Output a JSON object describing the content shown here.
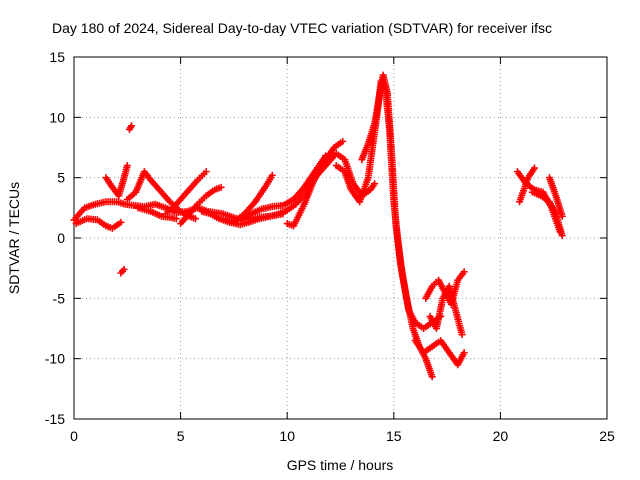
{
  "chart_data": {
    "type": "scatter",
    "title": "Day 180 of 2024, Sidereal Day-to-day VTEC variation (SDTVAR) for receiver ifsc",
    "xlabel": "GPS time / hours",
    "ylabel": "SDTVAR / TECUs",
    "xlim": [
      0,
      25
    ],
    "ylim": [
      -15,
      15
    ],
    "xticks": [
      "0",
      "5",
      "10",
      "15",
      "20",
      "25"
    ],
    "yticks": [
      "-15",
      "-10",
      "-5",
      "0",
      "5",
      "10",
      "15"
    ],
    "grid": true,
    "marker": "plus",
    "color": "#ff0000",
    "series": [
      {
        "name": "arc-1",
        "x": [
          0.0,
          0.5,
          1.0,
          1.5,
          2.0,
          2.4,
          2.8,
          3.3,
          3.8,
          4.3,
          4.8,
          5.3,
          5.8,
          6.3,
          7.0,
          7.8,
          8.5,
          9.2,
          9.8
        ],
        "y": [
          1.5,
          2.5,
          2.8,
          3.0,
          3.0,
          2.8,
          2.7,
          2.6,
          2.8,
          2.5,
          2.1,
          2.2,
          2.5,
          2.2,
          2.0,
          1.5,
          1.7,
          1.8,
          2.0
        ]
      },
      {
        "name": "arc-2",
        "x": [
          0.1,
          0.6,
          1.1,
          1.5,
          1.8,
          2.2
        ],
        "y": [
          1.2,
          1.6,
          1.5,
          1.0,
          0.8,
          1.3
        ]
      },
      {
        "name": "arc-3",
        "x": [
          1.5,
          1.8,
          2.1,
          2.35,
          2.5
        ],
        "y": [
          5.0,
          4.2,
          3.5,
          5.0,
          6.0
        ]
      },
      {
        "name": "arc-4",
        "x": [
          2.6,
          2.7
        ],
        "y": [
          9.0,
          9.3
        ]
      },
      {
        "name": "arc-5",
        "x": [
          2.2,
          2.35
        ],
        "y": [
          -2.9,
          -2.6
        ]
      },
      {
        "name": "arc-6",
        "x": [
          2.5,
          2.9,
          3.3,
          3.6,
          4.0,
          4.5,
          5.0,
          5.4,
          5.7
        ],
        "y": [
          3.2,
          3.8,
          5.5,
          4.8,
          4.0,
          3.0,
          2.2,
          1.8,
          1.6
        ]
      },
      {
        "name": "arc-7",
        "x": [
          4.3,
          4.8,
          5.3,
          5.8,
          6.2
        ],
        "y": [
          2.0,
          2.8,
          3.8,
          4.8,
          5.5
        ]
      },
      {
        "name": "arc-8",
        "x": [
          3.0,
          3.6,
          4.1,
          4.5,
          4.8
        ],
        "y": [
          2.5,
          2.2,
          1.8,
          1.7,
          1.6
        ]
      },
      {
        "name": "arc-9",
        "x": [
          5.0,
          5.4,
          5.8,
          6.2,
          6.6,
          6.9
        ],
        "y": [
          1.2,
          2.0,
          2.8,
          3.5,
          4.0,
          4.2
        ]
      },
      {
        "name": "arc-10",
        "x": [
          6.0,
          6.4,
          6.8,
          7.3,
          7.8,
          8.2,
          8.7,
          9.2,
          9.6,
          10.0,
          10.4,
          11.0,
          11.5
        ],
        "y": [
          2.2,
          2.0,
          1.6,
          1.3,
          1.1,
          1.3,
          1.6,
          1.8,
          2.0,
          2.3,
          2.8,
          4.0,
          5.5
        ]
      },
      {
        "name": "arc-11",
        "x": [
          7.0,
          7.5,
          8.0,
          8.5,
          9.0,
          9.3
        ],
        "y": [
          1.6,
          1.3,
          2.0,
          3.0,
          4.3,
          5.2
        ]
      },
      {
        "name": "arc-12",
        "x": [
          7.8,
          8.3,
          8.8,
          9.3,
          9.8,
          10.3,
          10.8,
          11.3,
          11.8
        ],
        "y": [
          1.5,
          2.0,
          2.4,
          2.6,
          2.7,
          3.2,
          4.2,
          5.5,
          6.8
        ]
      },
      {
        "name": "arc-13",
        "x": [
          10.0,
          10.3,
          10.8,
          11.3,
          11.8,
          12.2,
          12.6
        ],
        "y": [
          1.2,
          1.0,
          2.8,
          5.0,
          6.5,
          7.5,
          8.0
        ]
      },
      {
        "name": "arc-14",
        "x": [
          11.3,
          11.8,
          12.3,
          12.7,
          13.1,
          13.5,
          13.9,
          14.1
        ],
        "y": [
          5.0,
          6.0,
          7.0,
          6.5,
          4.5,
          3.5,
          4.0,
          4.5
        ]
      },
      {
        "name": "arc-15",
        "x": [
          12.3,
          12.7,
          13.0,
          13.4,
          13.8,
          14.2,
          14.4,
          14.6,
          14.8,
          15.0,
          15.3,
          15.6,
          15.9,
          16.2,
          16.5,
          16.8
        ],
        "y": [
          6.0,
          5.5,
          4.0,
          3.0,
          5.0,
          10.0,
          13.0,
          12.5,
          9.0,
          3.0,
          -2.0,
          -5.0,
          -7.5,
          -9.0,
          -10.0,
          -11.5
        ]
      },
      {
        "name": "arc-16",
        "x": [
          13.5,
          13.8,
          14.1,
          14.3,
          14.5,
          14.7,
          14.9,
          15.1,
          15.4,
          15.7,
          16.0,
          16.4,
          16.8,
          17.2
        ],
        "y": [
          6.5,
          7.8,
          9.5,
          11.5,
          13.5,
          12.0,
          7.0,
          1.0,
          -3.0,
          -6.0,
          -7.0,
          -7.5,
          -7.0,
          -6.5
        ]
      },
      {
        "name": "arc-17",
        "x": [
          16.0,
          16.4,
          16.8,
          17.2,
          17.6,
          18.0,
          18.3
        ],
        "y": [
          -8.5,
          -9.5,
          -9.0,
          -8.5,
          -9.5,
          -10.5,
          -9.5
        ]
      },
      {
        "name": "arc-18",
        "x": [
          16.5,
          16.8,
          17.1,
          17.4,
          17.7,
          18.0,
          18.3
        ],
        "y": [
          -5.0,
          -4.0,
          -3.5,
          -4.5,
          -5.5,
          -3.5,
          -2.8
        ]
      },
      {
        "name": "arc-19",
        "x": [
          16.7,
          17.0,
          17.3,
          17.6,
          17.9,
          18.2
        ],
        "y": [
          -6.5,
          -7.5,
          -5.0,
          -4.0,
          -6.0,
          -8.0
        ]
      },
      {
        "name": "arc-20",
        "x": [
          20.8,
          21.2,
          21.6,
          22.0,
          22.4,
          22.8
        ],
        "y": [
          5.5,
          4.5,
          4.0,
          3.8,
          2.5,
          0.5
        ]
      },
      {
        "name": "arc-21",
        "x": [
          20.9,
          21.3,
          21.6
        ],
        "y": [
          3.0,
          5.0,
          5.8
        ]
      },
      {
        "name": "arc-22",
        "x": [
          21.5,
          21.9,
          22.3,
          22.6,
          22.9
        ],
        "y": [
          3.8,
          3.5,
          3.0,
          2.0,
          0.2
        ]
      },
      {
        "name": "arc-23",
        "x": [
          22.3,
          22.6,
          22.9
        ],
        "y": [
          5.0,
          3.5,
          1.8
        ]
      }
    ]
  }
}
